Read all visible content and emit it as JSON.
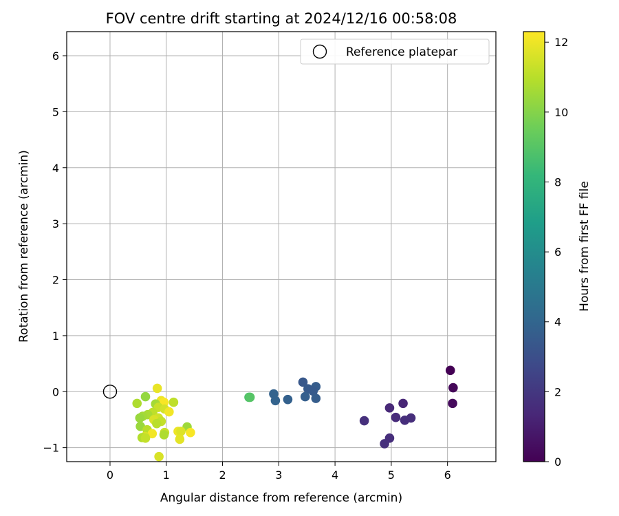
{
  "chart_data": {
    "type": "scatter",
    "title": "FOV centre drift starting at 2024/12/16 00:58:08",
    "xlabel": "Angular distance from reference (arcmin)",
    "ylabel": "Rotation from reference (arcmin)",
    "xlim": [
      -0.77,
      6.86
    ],
    "ylim": [
      -1.25,
      6.43
    ],
    "xticks": [
      0,
      1,
      2,
      3,
      4,
      5,
      6
    ],
    "yticks": [
      -1,
      0,
      1,
      2,
      3,
      4,
      5,
      6
    ],
    "grid": true,
    "legend": {
      "placement": "top-right",
      "entries": [
        {
          "label": "Reference platepar",
          "marker": "hollow-circle"
        }
      ]
    },
    "reference_point": {
      "x": 0,
      "y": 0,
      "label": "Reference platepar"
    },
    "colorbar": {
      "label": "Hours from first FF file",
      "colormap": "viridis",
      "range": [
        0,
        12.3
      ],
      "ticks": [
        0,
        2,
        4,
        6,
        8,
        10,
        12
      ],
      "stops": [
        "#440154",
        "#482878",
        "#3e4989",
        "#31688e",
        "#26828e",
        "#1f9e89",
        "#35b779",
        "#6ece58",
        "#b5de2b",
        "#fde725"
      ]
    },
    "series": [
      {
        "points": [
          {
            "x": 6.05,
            "y": 0.38,
            "t": 0.0
          },
          {
            "x": 6.1,
            "y": 0.07,
            "t": 0.2
          },
          {
            "x": 6.09,
            "y": -0.21,
            "t": 0.3
          },
          {
            "x": 5.21,
            "y": -0.21,
            "t": 1.3
          },
          {
            "x": 4.97,
            "y": -0.29,
            "t": 1.4
          },
          {
            "x": 5.08,
            "y": -0.46,
            "t": 1.5
          },
          {
            "x": 5.24,
            "y": -0.51,
            "t": 1.6
          },
          {
            "x": 5.35,
            "y": -0.47,
            "t": 1.6
          },
          {
            "x": 4.52,
            "y": -0.52,
            "t": 1.7
          },
          {
            "x": 4.97,
            "y": -0.83,
            "t": 1.6
          },
          {
            "x": 4.88,
            "y": -0.93,
            "t": 1.7
          },
          {
            "x": 3.43,
            "y": 0.17,
            "t": 3.4
          },
          {
            "x": 3.52,
            "y": 0.05,
            "t": 3.5
          },
          {
            "x": 3.66,
            "y": 0.09,
            "t": 3.6
          },
          {
            "x": 3.61,
            "y": 0.01,
            "t": 3.5
          },
          {
            "x": 3.47,
            "y": -0.09,
            "t": 3.7
          },
          {
            "x": 3.66,
            "y": -0.12,
            "t": 3.6
          },
          {
            "x": 2.91,
            "y": -0.04,
            "t": 3.9
          },
          {
            "x": 2.94,
            "y": -0.16,
            "t": 3.9
          },
          {
            "x": 3.16,
            "y": -0.14,
            "t": 3.8
          },
          {
            "x": 2.47,
            "y": -0.1,
            "t": 8.8
          },
          {
            "x": 2.49,
            "y": -0.1,
            "t": 9.0
          },
          {
            "x": 0.84,
            "y": 0.06,
            "t": 11.9
          },
          {
            "x": 0.63,
            "y": -0.09,
            "t": 10.3
          },
          {
            "x": 0.48,
            "y": -0.21,
            "t": 10.8
          },
          {
            "x": 0.91,
            "y": -0.16,
            "t": 12.0
          },
          {
            "x": 0.96,
            "y": -0.19,
            "t": 12.2
          },
          {
            "x": 1.13,
            "y": -0.19,
            "t": 11.1
          },
          {
            "x": 0.81,
            "y": -0.22,
            "t": 10.6
          },
          {
            "x": 0.86,
            "y": -0.28,
            "t": 11.3
          },
          {
            "x": 0.97,
            "y": -0.31,
            "t": 11.5
          },
          {
            "x": 1.05,
            "y": -0.36,
            "t": 12.1
          },
          {
            "x": 0.76,
            "y": -0.37,
            "t": 11.1
          },
          {
            "x": 0.67,
            "y": -0.41,
            "t": 10.7
          },
          {
            "x": 0.58,
            "y": -0.44,
            "t": 10.6
          },
          {
            "x": 0.53,
            "y": -0.47,
            "t": 10.4
          },
          {
            "x": 0.86,
            "y": -0.47,
            "t": 11.4
          },
          {
            "x": 0.78,
            "y": -0.5,
            "t": 11.6
          },
          {
            "x": 0.91,
            "y": -0.53,
            "t": 11.2
          },
          {
            "x": 0.83,
            "y": -0.57,
            "t": 11.0
          },
          {
            "x": 0.54,
            "y": -0.62,
            "t": 10.4
          },
          {
            "x": 1.37,
            "y": -0.63,
            "t": 10.5
          },
          {
            "x": 0.66,
            "y": -0.68,
            "t": 11.0
          },
          {
            "x": 1.21,
            "y": -0.71,
            "t": 12.0
          },
          {
            "x": 1.26,
            "y": -0.71,
            "t": 11.7
          },
          {
            "x": 1.43,
            "y": -0.73,
            "t": 12.2
          },
          {
            "x": 0.97,
            "y": -0.73,
            "t": 11.3
          },
          {
            "x": 0.75,
            "y": -0.75,
            "t": 12.1
          },
          {
            "x": 0.96,
            "y": -0.77,
            "t": 10.8
          },
          {
            "x": 0.62,
            "y": -0.8,
            "t": 11.6
          },
          {
            "x": 0.57,
            "y": -0.82,
            "t": 10.9
          },
          {
            "x": 0.63,
            "y": -0.83,
            "t": 11.2
          },
          {
            "x": 1.24,
            "y": -0.85,
            "t": 11.8
          },
          {
            "x": 0.87,
            "y": -1.16,
            "t": 11.6
          }
        ]
      }
    ]
  }
}
